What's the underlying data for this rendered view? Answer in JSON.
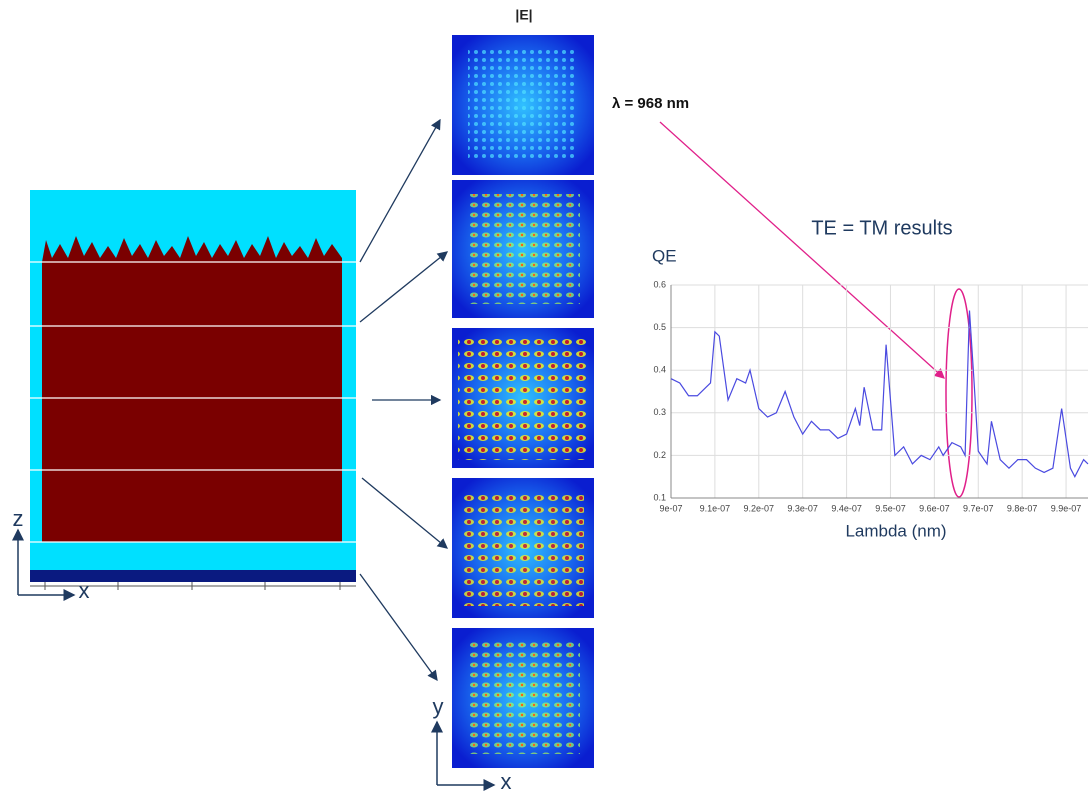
{
  "structure": {
    "z_label": "z",
    "x_label": "x"
  },
  "field_maps": {
    "title": "|E|",
    "y_label": "y",
    "x_label": "x"
  },
  "annotations": {
    "wavelength": "λ = 968 nm",
    "note": "TE = TM results"
  },
  "chart_data": {
    "type": "line",
    "ylabel": "QE",
    "xlabel": "Lambda (nm)",
    "xlim": [
      9e-07,
      9.95e-07
    ],
    "ylim": [
      0.1,
      0.6
    ],
    "grid": true,
    "xticks": [
      {
        "value": 9e-07,
        "label": "9e-07"
      },
      {
        "value": 9.1e-07,
        "label": "9.1e-07"
      },
      {
        "value": 9.2e-07,
        "label": "9.2e-07"
      },
      {
        "value": 9.3e-07,
        "label": "9.3e-07"
      },
      {
        "value": 9.4e-07,
        "label": "9.4e-07"
      },
      {
        "value": 9.5e-07,
        "label": "9.5e-07"
      },
      {
        "value": 9.6e-07,
        "label": "9.6e-07"
      },
      {
        "value": 9.7e-07,
        "label": "9.7e-07"
      },
      {
        "value": 9.8e-07,
        "label": "9.8e-07"
      },
      {
        "value": 9.9e-07,
        "label": "9.9e-07"
      }
    ],
    "yticks": [
      0.1,
      0.2,
      0.3,
      0.4,
      0.5,
      0.6
    ],
    "series": [
      {
        "color": "#4a4ae0",
        "x": [
          9e-07,
          9.02e-07,
          9.04e-07,
          9.06e-07,
          9.08e-07,
          9.09e-07,
          9.1e-07,
          9.11e-07,
          9.13e-07,
          9.15e-07,
          9.17e-07,
          9.18e-07,
          9.2e-07,
          9.22e-07,
          9.24e-07,
          9.26e-07,
          9.28e-07,
          9.3e-07,
          9.32e-07,
          9.34e-07,
          9.36e-07,
          9.38e-07,
          9.4e-07,
          9.42e-07,
          9.43e-07,
          9.44e-07,
          9.46e-07,
          9.48e-07,
          9.49e-07,
          9.51e-07,
          9.53e-07,
          9.55e-07,
          9.57e-07,
          9.59e-07,
          9.61e-07,
          9.62e-07,
          9.64e-07,
          9.66e-07,
          9.67e-07,
          9.68e-07,
          9.69e-07,
          9.7e-07,
          9.72e-07,
          9.73e-07,
          9.75e-07,
          9.77e-07,
          9.79e-07,
          9.81e-07,
          9.83e-07,
          9.85e-07,
          9.87e-07,
          9.89e-07,
          9.91e-07,
          9.92e-07,
          9.94e-07,
          9.95e-07
        ],
        "values": [
          0.38,
          0.37,
          0.34,
          0.34,
          0.36,
          0.37,
          0.49,
          0.48,
          0.33,
          0.38,
          0.37,
          0.4,
          0.31,
          0.29,
          0.3,
          0.35,
          0.29,
          0.25,
          0.28,
          0.26,
          0.26,
          0.24,
          0.25,
          0.31,
          0.27,
          0.36,
          0.26,
          0.26,
          0.46,
          0.2,
          0.22,
          0.18,
          0.2,
          0.19,
          0.22,
          0.2,
          0.23,
          0.22,
          0.2,
          0.54,
          0.38,
          0.21,
          0.18,
          0.28,
          0.19,
          0.17,
          0.19,
          0.19,
          0.17,
          0.16,
          0.17,
          0.31,
          0.17,
          0.15,
          0.19,
          0.18
        ]
      }
    ]
  }
}
